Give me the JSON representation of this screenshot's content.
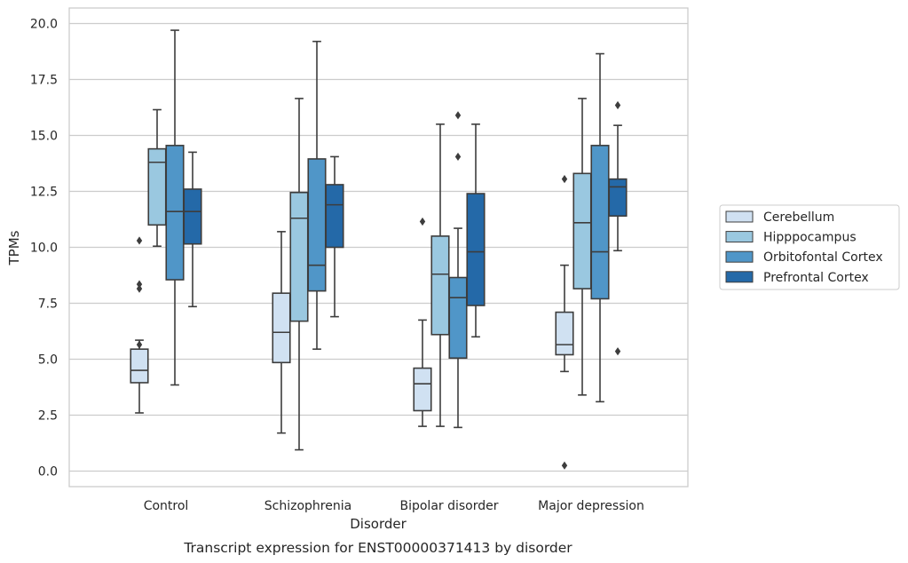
{
  "caption": "Transcript expression for ENST00000371413 by disorder",
  "chart_data": {
    "type": "box",
    "xlabel": "Disorder",
    "ylabel": "TPMs",
    "ylim": [
      -0.7,
      20.7
    ],
    "yticks": [
      "0.0",
      "2.5",
      "5.0",
      "7.5",
      "10.0",
      "12.5",
      "15.0",
      "17.5",
      "20.0"
    ],
    "categories": [
      "Control",
      "Schizophrenia",
      "Bipolar disorder",
      "Major depression"
    ],
    "grid": "horizontal",
    "legend_position": "right",
    "series": [
      {
        "name": "Cerebellum",
        "color": "#d0e1f2",
        "boxes": [
          {
            "whisker_low": 2.6,
            "q1": 3.95,
            "median": 4.5,
            "q3": 5.45,
            "whisker_high": 5.85,
            "outliers": [
              10.3,
              8.35,
              8.15,
              5.65
            ]
          },
          {
            "whisker_low": 1.7,
            "q1": 4.85,
            "median": 6.2,
            "q3": 7.95,
            "whisker_high": 10.7,
            "outliers": []
          },
          {
            "whisker_low": 2.0,
            "q1": 2.7,
            "median": 3.9,
            "q3": 4.6,
            "whisker_high": 6.75,
            "outliers": [
              11.15
            ]
          },
          {
            "whisker_low": 4.45,
            "q1": 5.2,
            "median": 5.65,
            "q3": 7.1,
            "whisker_high": 9.2,
            "outliers": [
              13.05,
              0.25
            ]
          }
        ]
      },
      {
        "name": "Hipppocampus",
        "color": "#9ac8e0",
        "boxes": [
          {
            "whisker_low": 10.05,
            "q1": 11.0,
            "median": 13.8,
            "q3": 14.4,
            "whisker_high": 16.15,
            "outliers": []
          },
          {
            "whisker_low": 0.95,
            "q1": 6.7,
            "median": 11.3,
            "q3": 12.45,
            "whisker_high": 16.65,
            "outliers": []
          },
          {
            "whisker_low": 2.0,
            "q1": 6.1,
            "median": 8.8,
            "q3": 10.5,
            "whisker_high": 15.5,
            "outliers": []
          },
          {
            "whisker_low": 3.4,
            "q1": 8.15,
            "median": 11.1,
            "q3": 13.3,
            "whisker_high": 16.65,
            "outliers": []
          }
        ]
      },
      {
        "name": "Orbitofontal Cortex",
        "color": "#5096c8",
        "boxes": [
          {
            "whisker_low": 3.85,
            "q1": 8.55,
            "median": 11.6,
            "q3": 14.55,
            "whisker_high": 19.7,
            "outliers": []
          },
          {
            "whisker_low": 5.45,
            "q1": 8.05,
            "median": 9.2,
            "q3": 13.95,
            "whisker_high": 19.2,
            "outliers": []
          },
          {
            "whisker_low": 1.95,
            "q1": 5.05,
            "median": 7.75,
            "q3": 8.65,
            "whisker_high": 10.85,
            "outliers": [
              14.05,
              15.9
            ]
          },
          {
            "whisker_low": 3.1,
            "q1": 7.7,
            "median": 9.8,
            "q3": 14.55,
            "whisker_high": 18.65,
            "outliers": []
          }
        ]
      },
      {
        "name": "Prefrontal Cortex",
        "color": "#2469a8",
        "boxes": [
          {
            "whisker_low": 7.35,
            "q1": 10.15,
            "median": 11.6,
            "q3": 12.6,
            "whisker_high": 14.25,
            "outliers": []
          },
          {
            "whisker_low": 6.9,
            "q1": 10.0,
            "median": 11.9,
            "q3": 12.8,
            "whisker_high": 14.05,
            "outliers": []
          },
          {
            "whisker_low": 6.0,
            "q1": 7.4,
            "median": 9.8,
            "q3": 12.4,
            "whisker_high": 15.5,
            "outliers": []
          },
          {
            "whisker_low": 9.85,
            "q1": 11.4,
            "median": 12.7,
            "q3": 13.05,
            "whisker_high": 15.45,
            "outliers": [
              16.35,
              5.35
            ]
          }
        ]
      }
    ]
  }
}
